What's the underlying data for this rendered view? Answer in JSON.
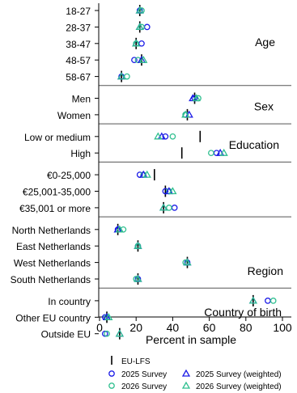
{
  "chart_data": {
    "type": "scatter",
    "xlabel": "Percent in sample",
    "xlim": [
      0,
      100
    ],
    "xticks": [
      0,
      20,
      40,
      60,
      80,
      100
    ],
    "series_names": {
      "eu_lfs": "EU-LFS",
      "s2025": "2025 Survey",
      "s2026": "2026 Survey",
      "s2025w": "2025 Survey (weighted)",
      "s2026w": "2026 Survey (weighted)"
    },
    "colors": {
      "blue": "#1a1ae6",
      "teal": "#2fbf8f",
      "dark": "#000000",
      "separator": "#555555"
    },
    "groups": [
      {
        "name": "Age",
        "rows": [
          {
            "label": "18-27",
            "eu_lfs": 22,
            "s2025": 22,
            "s2026": 23,
            "s2025w": 22,
            "s2026w": 22
          },
          {
            "label": "28-37",
            "eu_lfs": 22,
            "s2025": 26,
            "s2026": 23,
            "s2025w": 22,
            "s2026w": 22
          },
          {
            "label": "38-47",
            "eu_lfs": 20,
            "s2025": 23,
            "s2026": 20,
            "s2025w": 20,
            "s2026w": 20
          },
          {
            "label": "48-57",
            "eu_lfs": 23,
            "s2025": 19,
            "s2026": 21,
            "s2025w": 23,
            "s2026w": 24
          },
          {
            "label": "58-67",
            "eu_lfs": 12,
            "s2025": 12,
            "s2026": 15,
            "s2025w": 12,
            "s2026w": 12
          }
        ]
      },
      {
        "name": "Sex",
        "rows": [
          {
            "label": "Men",
            "eu_lfs": 52,
            "s2025": 52,
            "s2026": 54,
            "s2025w": 51,
            "s2026w": 53
          },
          {
            "label": "Women",
            "eu_lfs": 48,
            "s2025": 47,
            "s2026": 47,
            "s2025w": 49,
            "s2026w": 47
          }
        ]
      },
      {
        "name": "Education",
        "rows": [
          {
            "label": "Low or medium",
            "eu_lfs": 55,
            "s2025": 36,
            "s2026": 40,
            "s2025w": 34,
            "s2026w": 32
          },
          {
            "label": "High",
            "eu_lfs": 45,
            "s2025": 64,
            "s2026": 61,
            "s2025w": 66,
            "s2026w": 68
          }
        ]
      },
      {
        "name": "",
        "rows": [
          {
            "label": "€0-25,000",
            "eu_lfs": 30,
            "s2025": 22,
            "s2026": 24,
            "s2025w": 24,
            "s2026w": 26
          },
          {
            "label": "€25,001-35,000",
            "eu_lfs": 36,
            "s2025": 36,
            "s2026": 38,
            "s2025w": 38,
            "s2026w": 40
          },
          {
            "label": "€35,001 or more",
            "eu_lfs": 35,
            "s2025": 41,
            "s2026": 38,
            "s2025w": 35,
            "s2026w": 35
          }
        ]
      },
      {
        "name": "Region",
        "rows": [
          {
            "label": "North Netherlands",
            "eu_lfs": 10,
            "s2025": 10,
            "s2026": 13,
            "s2025w": 10,
            "s2026w": 11
          },
          {
            "label": "East Netherlands",
            "eu_lfs": 21,
            "s2025": 21,
            "s2026": 21,
            "s2025w": 21,
            "s2026w": 21
          },
          {
            "label": "West Netherlands",
            "eu_lfs": 48,
            "s2025": 48,
            "s2026": 47,
            "s2025w": 48,
            "s2026w": 48
          },
          {
            "label": "South Netherlands",
            "eu_lfs": 21,
            "s2025": 21,
            "s2026": 20,
            "s2025w": 21,
            "s2026w": 21
          }
        ]
      },
      {
        "name": "Country of birth",
        "rows": [
          {
            "label": "In country",
            "eu_lfs": 84,
            "s2025": 92,
            "s2026": 95,
            "s2025w": 84,
            "s2026w": 84
          },
          {
            "label": "Other EU country",
            "eu_lfs": 4,
            "s2025": 3,
            "s2026": 4,
            "s2025w": 4,
            "s2026w": 5
          },
          {
            "label": "Outside EU",
            "eu_lfs": 11,
            "s2025": 3,
            "s2026": 4,
            "s2025w": 11,
            "s2026w": 11
          }
        ]
      }
    ]
  }
}
